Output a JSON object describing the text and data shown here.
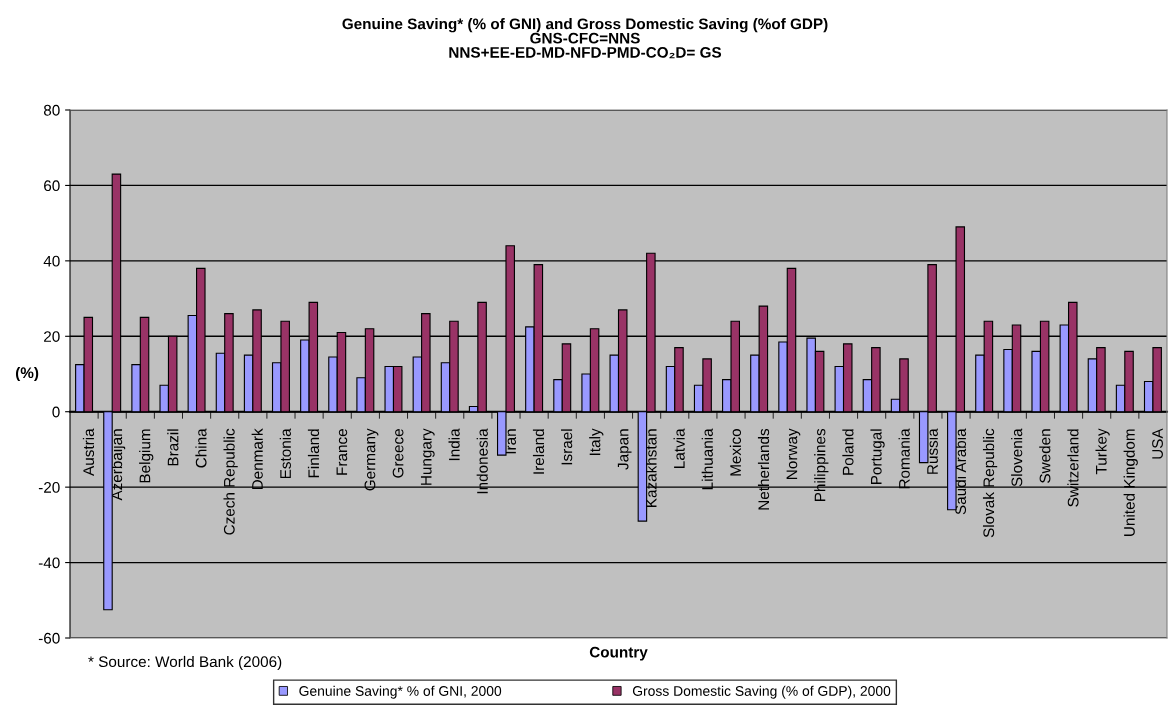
{
  "chart_data": {
    "type": "bar",
    "title": "Genuine Saving* (% of GNI) and Gross Domestic Saving (%of GDP)\nGNS-CFC=NNS\nNNS+EE-ED-MD-NFD-PMD-CO₂D= GS",
    "xlabel": "Country",
    "ylabel": "(%)",
    "categories": [
      "Austria",
      "Azerbaijan",
      "Belgium",
      "Brazil",
      "China",
      "Czech Republic",
      "Denmark",
      "Estonia",
      "Finland",
      "France",
      "Germany",
      "Greece",
      "Hungary",
      "India",
      "Indonesia",
      "Iran",
      "Ireland",
      "Israel",
      "Italy",
      "Japan",
      "Kazakhstan",
      "Latvia",
      "Lithuania",
      "Mexico",
      "Netherlands",
      "Norway",
      "Philippines",
      "Poland",
      "Portugal",
      "Romania",
      "Russia",
      "Saudi Arabia",
      "Slovak Republic",
      "Slovenia",
      "Sweden",
      "Switzerland",
      "Turkey",
      "United Kingdom",
      "USA"
    ],
    "series": [
      {
        "name": "Genuine Saving* % of GNI, 2000",
        "color": "#9999ff",
        "values": [
          12.5,
          -52.5,
          12.5,
          7,
          25.5,
          15.5,
          15,
          13,
          19,
          14.5,
          9,
          12,
          14.5,
          13,
          1.4,
          -11.5,
          22.5,
          8.5,
          10,
          15,
          -29,
          12,
          7,
          8.5,
          15,
          18.5,
          19.5,
          12,
          8.5,
          3.3,
          -13.5,
          -26,
          15,
          16.5,
          16,
          23,
          14,
          7,
          8
        ]
      },
      {
        "name": "Gross Domestic Saving (% of GDP), 2000",
        "color": "#993366",
        "values": [
          25,
          63,
          25,
          20,
          38,
          26,
          27,
          24,
          29,
          21,
          22,
          12,
          26,
          24,
          29,
          44,
          39,
          18,
          22,
          27,
          42,
          17,
          14,
          24,
          28,
          38,
          16,
          18,
          17,
          14,
          39,
          49,
          24,
          23,
          24,
          29,
          17,
          16,
          17
        ]
      }
    ],
    "ylim": [
      -60,
      80
    ],
    "yticks": [
      -60,
      -40,
      -20,
      0,
      20,
      40,
      60,
      80
    ],
    "grid": "y",
    "legend": "bottom",
    "annotations": [
      "* Source: World Bank (2006)"
    ]
  }
}
